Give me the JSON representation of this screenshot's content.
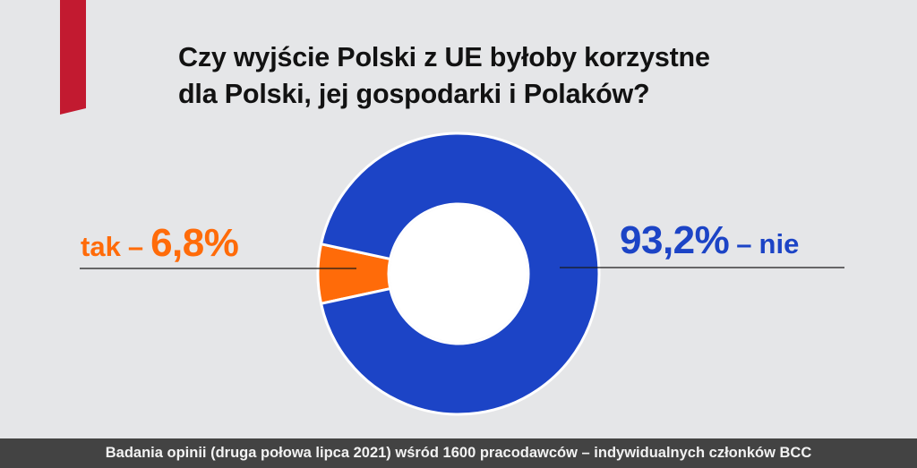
{
  "title_lines": [
    "Czy wyjście Polski z UE byłoby korzystne",
    "dla Polski, jej gospodarki i Polaków?"
  ],
  "colors": {
    "tak": "#ff6b09",
    "nie": "#1c44c6",
    "accent": "#c21a30",
    "background": "#e5e6e8",
    "footer_bg": "#434343"
  },
  "chart_data": {
    "type": "pie",
    "style": "donut",
    "title": "Czy wyjście Polski z UE byłoby korzystne dla Polski, jej gospodarki i Polaków?",
    "slices": [
      {
        "label": "tak",
        "value": 6.8,
        "display": "6,8%"
      },
      {
        "label": "nie",
        "value": 93.2,
        "display": "93,2%"
      }
    ]
  },
  "labels": {
    "tak": {
      "word": "tak",
      "dash": "–",
      "value": "6,8%"
    },
    "nie": {
      "value": "93,2%",
      "dash": "–",
      "word": "nie"
    }
  },
  "footer": "Badania opinii (druga połowa lipca 2021) wśród 1600 pracodawców – indywidualnych członków BCC"
}
